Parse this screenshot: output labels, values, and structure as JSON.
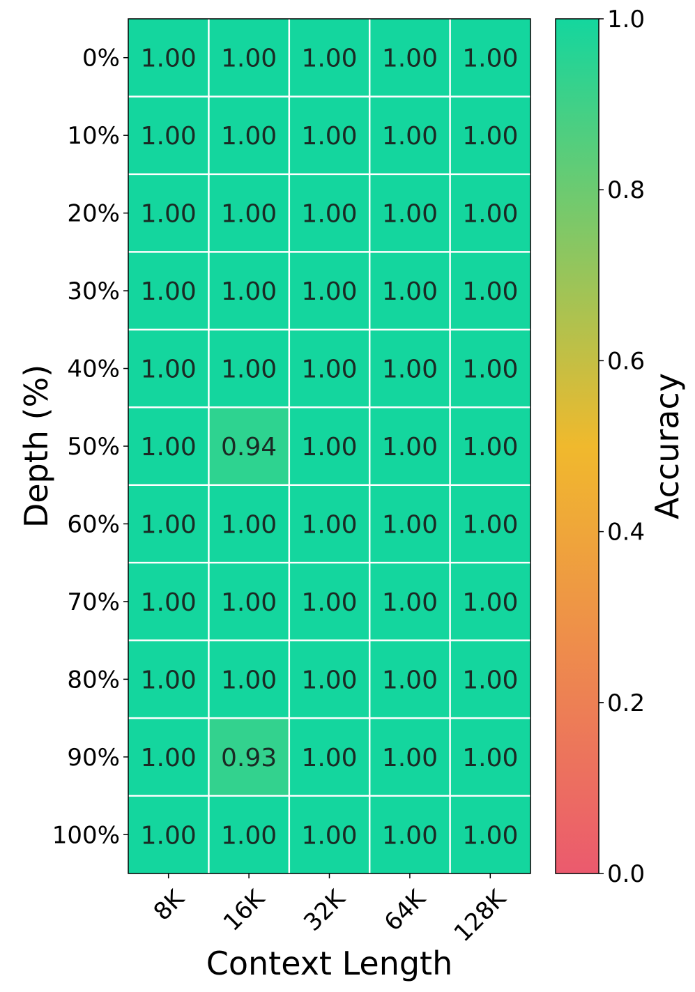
{
  "chart_data": {
    "type": "heatmap",
    "title": "",
    "xlabel": "Context Length",
    "ylabel": "Depth (%)",
    "x_categories": [
      "8K",
      "16K",
      "32K",
      "64K",
      "128K"
    ],
    "y_categories": [
      "0%",
      "10%",
      "20%",
      "30%",
      "40%",
      "50%",
      "60%",
      "70%",
      "80%",
      "90%",
      "100%"
    ],
    "values": [
      [
        1.0,
        1.0,
        1.0,
        1.0,
        1.0
      ],
      [
        1.0,
        1.0,
        1.0,
        1.0,
        1.0
      ],
      [
        1.0,
        1.0,
        1.0,
        1.0,
        1.0
      ],
      [
        1.0,
        1.0,
        1.0,
        1.0,
        1.0
      ],
      [
        1.0,
        1.0,
        1.0,
        1.0,
        1.0
      ],
      [
        1.0,
        0.94,
        1.0,
        1.0,
        1.0
      ],
      [
        1.0,
        1.0,
        1.0,
        1.0,
        1.0
      ],
      [
        1.0,
        1.0,
        1.0,
        1.0,
        1.0
      ],
      [
        1.0,
        1.0,
        1.0,
        1.0,
        1.0
      ],
      [
        1.0,
        0.93,
        1.0,
        1.0,
        1.0
      ],
      [
        1.0,
        1.0,
        1.0,
        1.0,
        1.0
      ]
    ],
    "value_format_decimals": 2,
    "colorbar": {
      "label": "Accuracy",
      "range": [
        0.0,
        1.0
      ],
      "ticks": [
        "0.0",
        "0.2",
        "0.4",
        "0.6",
        "0.8",
        "1.0"
      ],
      "colors": [
        "#eb5a6e",
        "#f0b92d",
        "#14d69e"
      ],
      "color_positions": [
        0.0,
        0.5,
        1.0
      ]
    },
    "grid_line_color": "#ffffff"
  }
}
